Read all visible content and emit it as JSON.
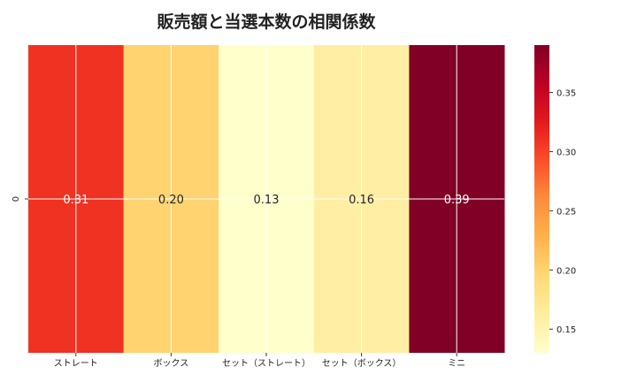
{
  "chart_data": {
    "type": "heatmap",
    "title": "販売額と当選本数の相関係数",
    "categories": [
      "ストレート",
      "ボックス",
      "セット（ストレート）",
      "セット（ボックス）",
      "ミニ"
    ],
    "row_labels": [
      "0"
    ],
    "values": [
      [
        0.31,
        0.2,
        0.13,
        0.16,
        0.39
      ]
    ],
    "value_labels": [
      "0.31",
      "0.20",
      "0.13",
      "0.16",
      "0.39"
    ],
    "colormap": "YlOrRd",
    "colorbar": {
      "range": [
        0.13,
        0.39
      ],
      "ticks": [
        0.15,
        0.2,
        0.25,
        0.3,
        0.35
      ],
      "tick_labels": [
        "0.15",
        "0.20",
        "0.25",
        "0.30",
        "0.35"
      ]
    },
    "grid": true,
    "xlabel": "",
    "ylabel": ""
  }
}
